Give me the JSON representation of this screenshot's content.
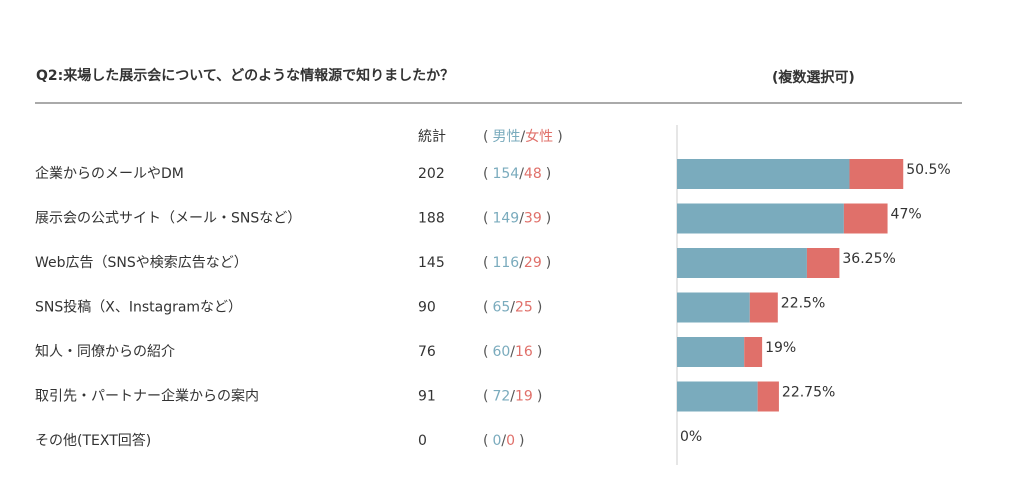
{
  "chart_data": {
    "type": "bar",
    "orientation": "horizontal",
    "stacked": true,
    "title": "Q2:来場した展示会について、どのような情報源で知りましたか？",
    "subtitle": "(複数選択可)",
    "total_header": "統計",
    "brackets": [
      "(",
      "/",
      ")"
    ],
    "categories": [
      "企業からのメールやDM",
      "展示会の公式サイト（メール・SNSなど）",
      "Web広告（SNSや検索広告など）",
      "SNS投稿（X、Instagramなど）",
      "知人・同僚からの紹介",
      "取引先・パートナー企業からの案内",
      "その他(TEXT回答)"
    ],
    "totals": [
      202,
      188,
      145,
      90,
      76,
      91,
      0
    ],
    "series": [
      {
        "name": "男性",
        "color": "#7aabbd",
        "values": [
          154,
          149,
          116,
          65,
          60,
          72,
          0
        ]
      },
      {
        "name": "女性",
        "color": "#e0706a",
        "values": [
          48,
          39,
          29,
          25,
          16,
          19,
          0
        ]
      }
    ],
    "percent": {
      "values": [
        50.5,
        47,
        36.25,
        22.5,
        19,
        22.75,
        0
      ],
      "value_labels": [
        "50.5%",
        "47%",
        "36.25%",
        "22.5%",
        "19%",
        "22.75%",
        "0%"
      ]
    }
  }
}
